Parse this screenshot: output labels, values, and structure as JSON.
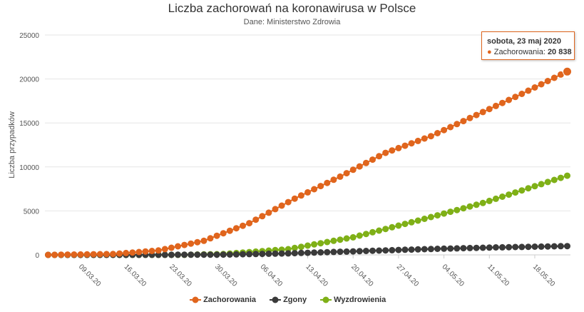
{
  "chart_data": {
    "type": "scatter",
    "title": "Liczba zachorowań na koronawirusa w Polsce",
    "subtitle": "Dane: Ministerstwo Zdrowia",
    "ylabel": "Liczba przypadków",
    "xlabel": "",
    "ylim": [
      0,
      25000
    ],
    "yticks": [
      0,
      5000,
      10000,
      15000,
      20000,
      25000
    ],
    "ytick_labels": [
      "0",
      "5000",
      "10000",
      "15000",
      "20000",
      "25000"
    ],
    "x_start": "2020-03-04",
    "x_end": "2020-05-23",
    "xtick_dates": [
      "2020-03-09",
      "2020-03-16",
      "2020-03-23",
      "2020-03-30",
      "2020-04-06",
      "2020-04-13",
      "2020-04-20",
      "2020-04-27",
      "2020-05-04",
      "2020-05-11",
      "2020-05-18"
    ],
    "xtick_labels": [
      "09.03.20",
      "16.03.20",
      "23.03.20",
      "30.03.20",
      "06.04.20",
      "13.04.20",
      "20.04.20",
      "27.04.20",
      "04.05.20",
      "11.05.20",
      "18.05.20"
    ],
    "grid": true,
    "legend_position": "bottom",
    "series": [
      {
        "name": "Zachorowania",
        "color": "#e0651d",
        "anchors": [
          [
            "2020-03-04",
            1
          ],
          [
            "2020-03-14",
            100
          ],
          [
            "2020-03-21",
            500
          ],
          [
            "2020-03-28",
            1600
          ],
          [
            "2020-04-04",
            3600
          ],
          [
            "2020-04-11",
            6400
          ],
          [
            "2020-04-18",
            8900
          ],
          [
            "2020-04-25",
            11600
          ],
          [
            "2020-05-02",
            13500
          ],
          [
            "2020-05-09",
            15900
          ],
          [
            "2020-05-16",
            18300
          ],
          [
            "2020-05-22",
            20500
          ],
          [
            "2020-05-23",
            20838
          ]
        ]
      },
      {
        "name": "Zgony",
        "color": "#3a3a3a",
        "anchors": [
          [
            "2020-03-04",
            0
          ],
          [
            "2020-03-20",
            5
          ],
          [
            "2020-03-31",
            30
          ],
          [
            "2020-04-10",
            170
          ],
          [
            "2020-04-20",
            400
          ],
          [
            "2020-05-01",
            650
          ],
          [
            "2020-05-12",
            850
          ],
          [
            "2020-05-23",
            1000
          ]
        ]
      },
      {
        "name": "Wyzdrowienia",
        "color": "#7fb017",
        "anchors": [
          [
            "2020-03-04",
            0
          ],
          [
            "2020-03-25",
            10
          ],
          [
            "2020-03-31",
            100
          ],
          [
            "2020-04-10",
            650
          ],
          [
            "2020-04-20",
            2000
          ],
          [
            "2020-04-30",
            3900
          ],
          [
            "2020-05-10",
            5900
          ],
          [
            "2020-05-23",
            9000
          ]
        ]
      }
    ],
    "tooltip": {
      "date": "sobota, 23 maj 2020",
      "series": "Zachorowania",
      "value": "20 838"
    }
  }
}
